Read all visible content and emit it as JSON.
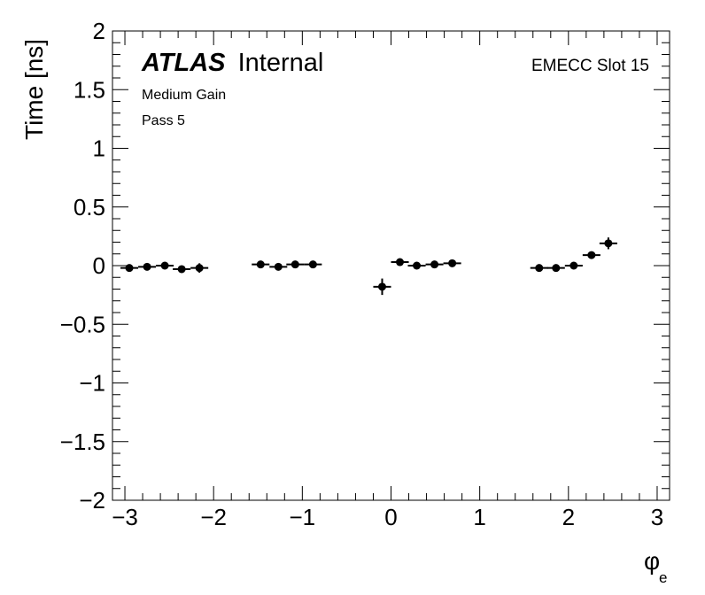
{
  "chart_data": {
    "type": "scatter",
    "experiment": "ATLAS",
    "status": "Internal",
    "labels": [
      "Medium Gain",
      "Pass 5"
    ],
    "region_label": "EMECC Slot 15",
    "xlabel": "φ",
    "xlabel_subscript": "e",
    "ylabel": "Time [ns]",
    "xlim": [
      -3.14,
      3.14
    ],
    "ylim": [
      -2,
      2
    ],
    "x_ticks": [
      -3,
      -2,
      -1,
      0,
      1,
      2,
      3
    ],
    "x_tick_labels": [
      "−3",
      "−2",
      "−1",
      "0",
      "1",
      "2",
      "3"
    ],
    "y_ticks": [
      -2,
      -1.5,
      -1,
      -0.5,
      0,
      0.5,
      1,
      1.5,
      2
    ],
    "y_tick_labels": [
      "−2",
      "−1.5",
      "−1",
      "−0.5",
      "0",
      "0.5",
      "1",
      "1.5",
      "2"
    ],
    "grid": false,
    "series": [
      {
        "points": [
          {
            "x": -2.95,
            "y": -0.02,
            "xerr": 0.1,
            "yerr": 0.01
          },
          {
            "x": -2.75,
            "y": -0.01,
            "xerr": 0.1,
            "yerr": 0.01
          },
          {
            "x": -2.55,
            "y": 0.0,
            "xerr": 0.1,
            "yerr": 0.01
          },
          {
            "x": -2.36,
            "y": -0.03,
            "xerr": 0.1,
            "yerr": 0.01
          },
          {
            "x": -2.16,
            "y": -0.02,
            "xerr": 0.1,
            "yerr": 0.04
          },
          {
            "x": -1.47,
            "y": 0.01,
            "xerr": 0.1,
            "yerr": 0.01
          },
          {
            "x": -1.27,
            "y": -0.01,
            "xerr": 0.1,
            "yerr": 0.01
          },
          {
            "x": -1.08,
            "y": 0.01,
            "xerr": 0.1,
            "yerr": 0.01
          },
          {
            "x": -0.88,
            "y": 0.01,
            "xerr": 0.1,
            "yerr": 0.01
          },
          {
            "x": -0.1,
            "y": -0.18,
            "xerr": 0.1,
            "yerr": 0.07
          },
          {
            "x": 0.1,
            "y": 0.03,
            "xerr": 0.1,
            "yerr": 0.01
          },
          {
            "x": 0.29,
            "y": 0.0,
            "xerr": 0.1,
            "yerr": 0.01
          },
          {
            "x": 0.49,
            "y": 0.01,
            "xerr": 0.1,
            "yerr": 0.01
          },
          {
            "x": 0.69,
            "y": 0.02,
            "xerr": 0.1,
            "yerr": 0.01
          },
          {
            "x": 1.67,
            "y": -0.02,
            "xerr": 0.1,
            "yerr": 0.01
          },
          {
            "x": 1.86,
            "y": -0.02,
            "xerr": 0.1,
            "yerr": 0.01
          },
          {
            "x": 2.06,
            "y": 0.0,
            "xerr": 0.1,
            "yerr": 0.01
          },
          {
            "x": 2.26,
            "y": 0.09,
            "xerr": 0.1,
            "yerr": 0.01
          },
          {
            "x": 2.45,
            "y": 0.19,
            "xerr": 0.1,
            "yerr": 0.05
          }
        ]
      }
    ]
  }
}
